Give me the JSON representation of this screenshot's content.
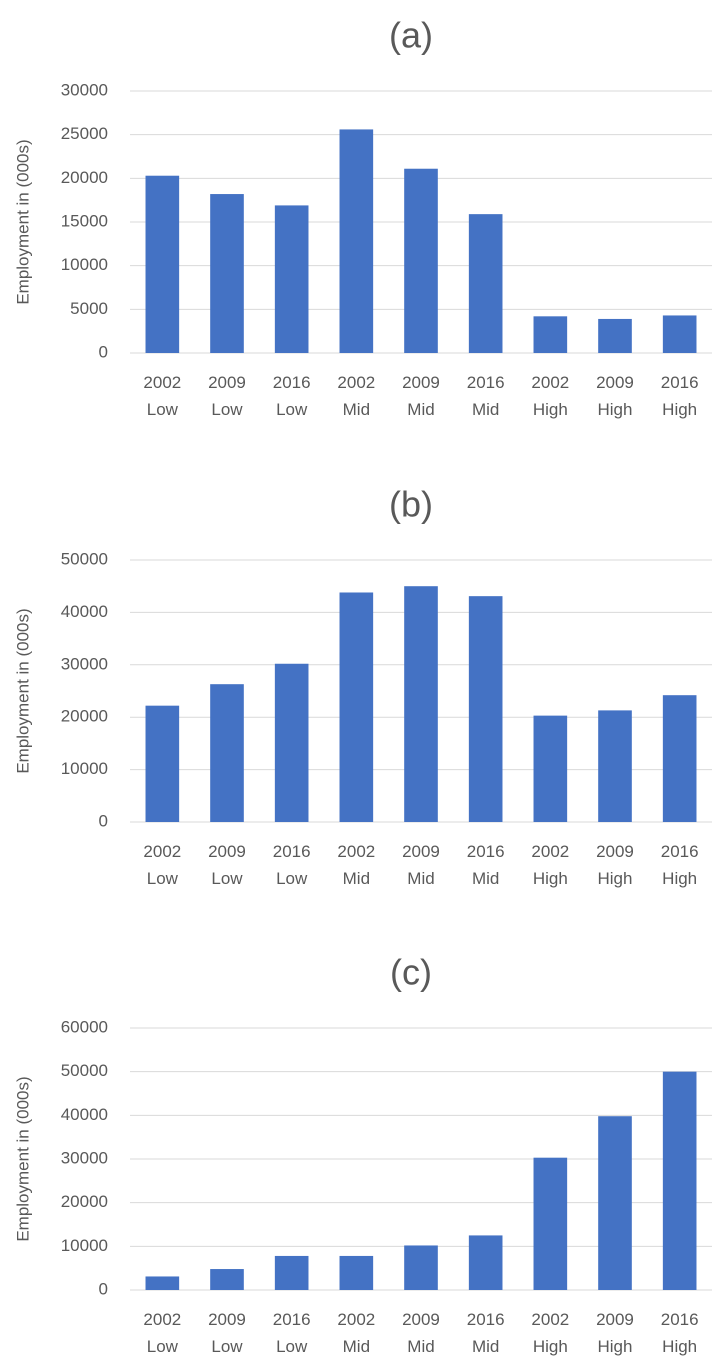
{
  "chart_data": [
    {
      "type": "bar",
      "title": "(a)",
      "y_label": "Employment in (000s)",
      "categories": [
        "2002\nLow",
        "2009\nLow",
        "2016\nLow",
        "2002\nMid",
        "2009\nMid",
        "2016\nMid",
        "2002\nHigh",
        "2009\nHigh",
        "2016\nHigh"
      ],
      "values": [
        20300,
        18200,
        16900,
        25600,
        21100,
        15900,
        4200,
        3900,
        4300
      ],
      "color": "#4472c4",
      "ylim": [
        0,
        30000
      ],
      "yticks": [
        0,
        5000,
        10000,
        15000,
        20000,
        25000,
        30000
      ],
      "grid": true
    },
    {
      "type": "bar",
      "title": "(b)",
      "y_label": "Employment in (000s)",
      "categories": [
        "2002\nLow",
        "2009\nLow",
        "2016\nLow",
        "2002\nMid",
        "2009\nMid",
        "2016\nMid",
        "2002\nHigh",
        "2009\nHigh",
        "2016\nHigh"
      ],
      "values": [
        22200,
        26300,
        30200,
        43800,
        45000,
        43100,
        20300,
        21300,
        24200
      ],
      "color": "#4472c4",
      "ylim": [
        0,
        50000
      ],
      "yticks": [
        0,
        10000,
        20000,
        30000,
        40000,
        50000
      ],
      "grid": true
    },
    {
      "type": "bar",
      "title": "(c)",
      "y_label": "Employment in (000s)",
      "categories": [
        "2002\nLow",
        "2009\nLow",
        "2016\nLow",
        "2002\nMid",
        "2009\nMid",
        "2016\nMid",
        "2002\nHigh",
        "2009\nHigh",
        "2016\nHigh"
      ],
      "values": [
        3100,
        4800,
        7800,
        7800,
        10200,
        12500,
        30300,
        39800,
        50000
      ],
      "color": "#4472c4",
      "ylim": [
        0,
        60000
      ],
      "yticks": [
        0,
        10000,
        20000,
        30000,
        40000,
        50000,
        60000
      ],
      "grid": true
    }
  ]
}
